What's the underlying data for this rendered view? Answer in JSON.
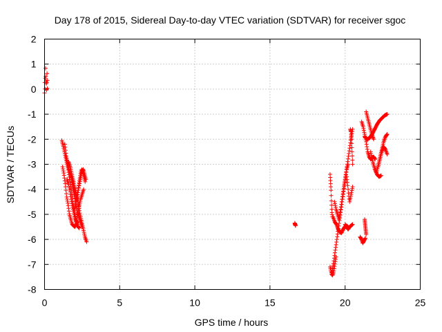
{
  "chart_data": {
    "type": "scatter",
    "title": "Day 178 of 2015, Sidereal Day-to-day VTEC variation (SDTVAR) for receiver sgoc",
    "xlabel": "GPS time / hours",
    "ylabel": "SDTVAR / TECUs",
    "xlim": [
      0,
      25
    ],
    "ylim": [
      -8,
      2
    ],
    "xticks": [
      0,
      5,
      10,
      15,
      20,
      25
    ],
    "yticks": [
      2,
      1,
      0,
      -1,
      -2,
      -3,
      -4,
      -5,
      -6,
      -7,
      -8
    ],
    "xtick_labels": [
      "0",
      "5",
      "10",
      "15",
      "20",
      "25"
    ],
    "ytick_labels": [
      "2",
      "1",
      "0",
      "-1",
      "-2",
      "-3",
      "-4",
      "-5",
      "-6",
      "-7",
      "-8"
    ],
    "grid": true,
    "marker": "+",
    "marker_color": "#ff0000",
    "series": [
      {
        "name": "sgoc",
        "color": "#ff0000",
        "segments": [
          {
            "x0": 0.0,
            "x1": 0.2,
            "y": [
              -0.15,
              0.3,
              -0.05,
              0.6,
              0.95,
              0.2,
              0.45,
              -0.1,
              0.1,
              0.75,
              0.0,
              0.35
            ]
          },
          {
            "x0": 1.15,
            "x1": 2.3,
            "y": [
              -2.05,
              -2.3,
              -2.6,
              -2.9,
              -3.2,
              -3.6,
              -4.0,
              -4.5,
              -4.9,
              -5.2,
              -5.45,
              -5.55
            ]
          },
          {
            "x0": 1.2,
            "x1": 2.2,
            "y": [
              -3.1,
              -3.4,
              -3.8,
              -4.3,
              -4.6,
              -5.0,
              -5.2,
              -5.4,
              -5.45,
              -5.5,
              -5.4,
              -5.3
            ]
          },
          {
            "x0": 1.35,
            "x1": 2.5,
            "y": [
              -2.2,
              -2.7,
              -3.0,
              -3.3,
              -3.5,
              -3.9,
              -4.2,
              -4.6,
              -4.9,
              -5.1,
              -5.3,
              -5.5
            ]
          },
          {
            "x0": 1.6,
            "x1": 2.8,
            "y": [
              -2.9,
              -3.1,
              -3.4,
              -3.7,
              -4.0,
              -4.3,
              -4.6,
              -5.0,
              -5.3,
              -5.6,
              -5.9,
              -6.1
            ]
          },
          {
            "x0": 1.8,
            "x1": 2.75,
            "y": [
              -3.5,
              -3.7,
              -4.0,
              -4.2,
              -4.4,
              -4.1,
              -3.8,
              -3.5,
              -3.3,
              -3.2,
              -3.4,
              -3.6
            ]
          },
          {
            "x0": 1.5,
            "x1": 2.6,
            "y": [
              -3.6,
              -3.8,
              -4.1,
              -4.5,
              -4.8,
              -5.1,
              -5.3,
              -5.0,
              -4.7,
              -4.4,
              -4.2,
              -4.0
            ]
          },
          {
            "x0": 2.0,
            "x1": 2.7,
            "y": [
              -4.8,
              -4.6,
              -4.3,
              -4.0,
              -3.7,
              -3.4,
              -3.2,
              -3.3,
              -3.5,
              -3.7
            ]
          },
          {
            "x0": 16.65,
            "x1": 16.7,
            "y": [
              -5.35,
              -5.45
            ]
          },
          {
            "x0": 19.0,
            "x1": 19.15,
            "y": [
              -3.4,
              -3.7,
              -4.0,
              -4.5,
              -4.9,
              -5.1
            ]
          },
          {
            "x0": 19.0,
            "x1": 19.4,
            "y": [
              -7.1,
              -7.3,
              -7.45,
              -7.3,
              -7.0,
              -6.7
            ]
          },
          {
            "x0": 19.1,
            "x1": 20.5,
            "y": [
              -7.4,
              -7.0,
              -6.5,
              -6.0,
              -5.5,
              -5.0,
              -4.5,
              -4.0,
              -3.5,
              -3.0,
              -2.5,
              -2.0,
              -1.6
            ]
          },
          {
            "x0": 19.2,
            "x1": 20.2,
            "y": [
              -5.1,
              -5.3,
              -5.4,
              -5.6,
              -5.7,
              -5.75,
              -5.6,
              -5.5,
              -5.45,
              -5.5
            ]
          },
          {
            "x0": 19.3,
            "x1": 20.2,
            "y": [
              -4.5,
              -4.8,
              -5.0,
              -5.2,
              -4.8,
              -4.4,
              -4.0,
              -3.6,
              -3.2,
              -3.0
            ]
          },
          {
            "x0": 20.0,
            "x1": 20.5,
            "y": [
              -5.4,
              -5.5,
              -5.6,
              -5.5,
              -5.45,
              -5.4
            ]
          },
          {
            "x0": 20.1,
            "x1": 20.5,
            "y": [
              -3.5,
              -3.8,
              -4.2,
              -4.5,
              -4.3,
              -4.1,
              -3.9
            ]
          },
          {
            "x0": 20.35,
            "x1": 20.5,
            "y": [
              -1.6,
              -1.7,
              -2.0,
              -2.5,
              -3.0
            ]
          },
          {
            "x0": 21.0,
            "x1": 21.35,
            "y": [
              -5.9,
              -6.0,
              -6.15,
              -6.05,
              -5.95
            ]
          },
          {
            "x0": 21.3,
            "x1": 21.4,
            "y": [
              -5.2,
              -5.5,
              -5.8
            ]
          },
          {
            "x0": 21.1,
            "x1": 22.0,
            "y": [
              -1.3,
              -1.5,
              -1.8,
              -2.1,
              -2.5,
              -2.7,
              -2.8,
              -2.75,
              -2.7,
              -2.8
            ]
          },
          {
            "x0": 21.3,
            "x1": 22.8,
            "y": [
              -1.9,
              -2.0,
              -1.95,
              -1.8,
              -1.6,
              -1.4,
              -1.25,
              -1.15,
              -1.05,
              -1.0
            ]
          },
          {
            "x0": 21.4,
            "x1": 21.9,
            "y": [
              -0.9,
              -1.2,
              -1.5,
              -1.8,
              -2.0
            ]
          },
          {
            "x0": 21.7,
            "x1": 22.4,
            "y": [
              -2.5,
              -2.9,
              -3.2,
              -3.4,
              -3.5,
              -3.45
            ]
          },
          {
            "x0": 22.1,
            "x1": 22.8,
            "y": [
              -3.3,
              -3.0,
              -2.7,
              -2.4,
              -2.1,
              -1.9,
              -1.8
            ]
          },
          {
            "x0": 22.2,
            "x1": 22.8,
            "y": [
              -3.1,
              -2.8,
              -2.5,
              -2.3,
              -2.4,
              -2.6
            ]
          }
        ]
      }
    ]
  }
}
